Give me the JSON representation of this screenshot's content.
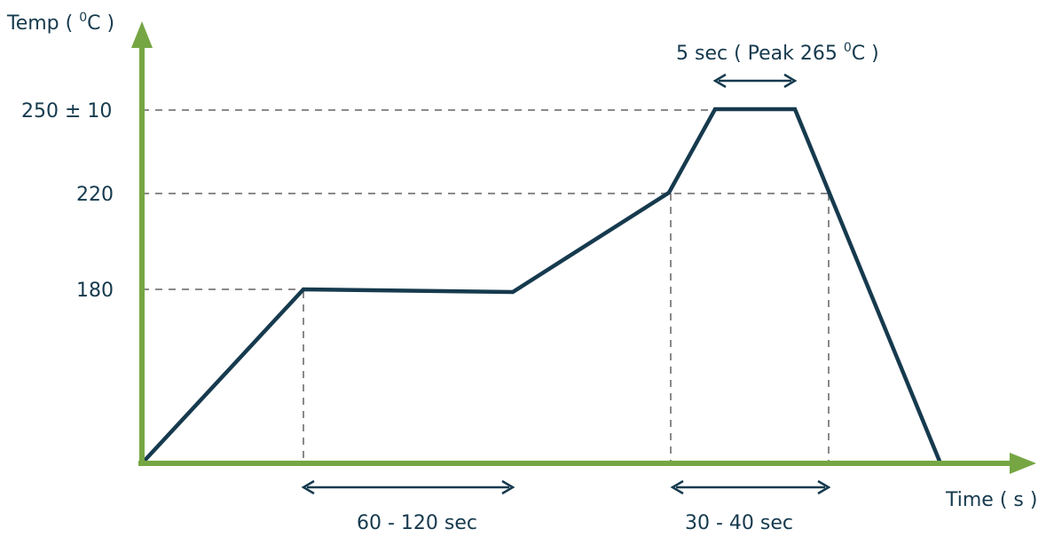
{
  "diagram": {
    "title": "",
    "y_axis_label": "Temp ( ",
    "y_axis_unit_sup": "0",
    "y_axis_unit_tail": "C )",
    "x_axis_label": "Time ( s )",
    "ticks": {
      "t250": "250 ± 10",
      "t220": "220",
      "t180": "180"
    },
    "peak_annotation": {
      "main": "5 sec ( Peak 265 ",
      "sup": "0",
      "tail": "C )"
    },
    "intervals": {
      "soak": "60 - 120 sec",
      "reflow": "30 - 40 sec"
    },
    "colors": {
      "axis": "#76a643",
      "profile": "#163a4e",
      "guides": "#8a8a8a",
      "text": "#163a4e"
    }
  }
}
